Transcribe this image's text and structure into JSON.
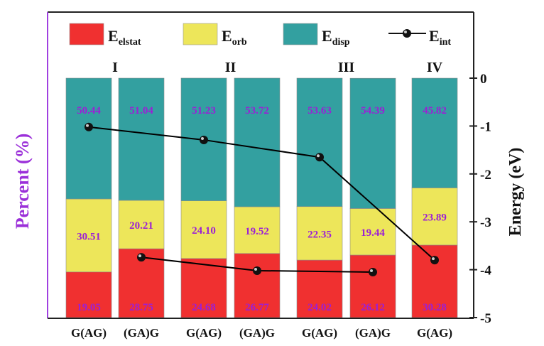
{
  "chart_data": {
    "type": "bar",
    "subtype": "stacked-percent-bar with line overlay",
    "categories": [
      "G(AG)",
      "(GA)G",
      "G(AG)",
      "(GA)G",
      "G(AG)",
      "(GA)G",
      "G(AG)"
    ],
    "groups": [
      {
        "label": "I",
        "bars": [
          0,
          1
        ]
      },
      {
        "label": "II",
        "bars": [
          2,
          3
        ]
      },
      {
        "label": "III",
        "bars": [
          4,
          5
        ]
      },
      {
        "label": "IV",
        "bars": [
          6
        ]
      }
    ],
    "series": [
      {
        "name": "E",
        "sub": "elstat",
        "color": "#f03030",
        "values": [
          19.05,
          28.75,
          24.68,
          26.77,
          24.02,
          26.12,
          30.28
        ],
        "labels": [
          "19.05",
          "28.75",
          "24.68",
          "26.77",
          "24.02",
          "26.12",
          "30.28"
        ]
      },
      {
        "name": "E",
        "sub": "orb",
        "color": "#ede65a",
        "values": [
          30.51,
          20.21,
          24.1,
          19.52,
          22.35,
          19.44,
          23.89
        ],
        "labels": [
          "30.51",
          "20.21",
          "24.10",
          "19.52",
          "22.35",
          "19.44",
          "23.89"
        ]
      },
      {
        "name": "E",
        "sub": "disp",
        "color": "#33a0a0",
        "values": [
          50.44,
          51.04,
          51.23,
          53.72,
          53.63,
          54.39,
          45.82
        ],
        "labels": [
          "50.44",
          "51.04",
          "51.23",
          "53.72",
          "53.63",
          "54.39",
          "45.82"
        ]
      }
    ],
    "line_series": {
      "name": "E",
      "sub": "int",
      "color": "#000000",
      "lines": [
        {
          "bars": [
            0,
            2,
            4,
            6
          ],
          "values": [
            -1.02,
            -1.29,
            -1.65,
            -3.8
          ]
        },
        {
          "bars": [
            1,
            3,
            5
          ],
          "values": [
            -3.74,
            -4.02,
            -4.05
          ]
        }
      ]
    },
    "left_axis": {
      "label": "Percent (%)",
      "color": "#9b30d9",
      "ylim": [
        0,
        100
      ]
    },
    "right_axis": {
      "label": "Energy (eV)",
      "ylim": [
        -5,
        0
      ],
      "ticks": [
        "0",
        "-1",
        "-2",
        "-3",
        "-4",
        "-5"
      ],
      "tick_values": [
        0,
        -1,
        -2,
        -3,
        -4,
        -5
      ]
    },
    "value_label_color": "#9b1fd6",
    "legend_position": "top",
    "grid": false
  }
}
